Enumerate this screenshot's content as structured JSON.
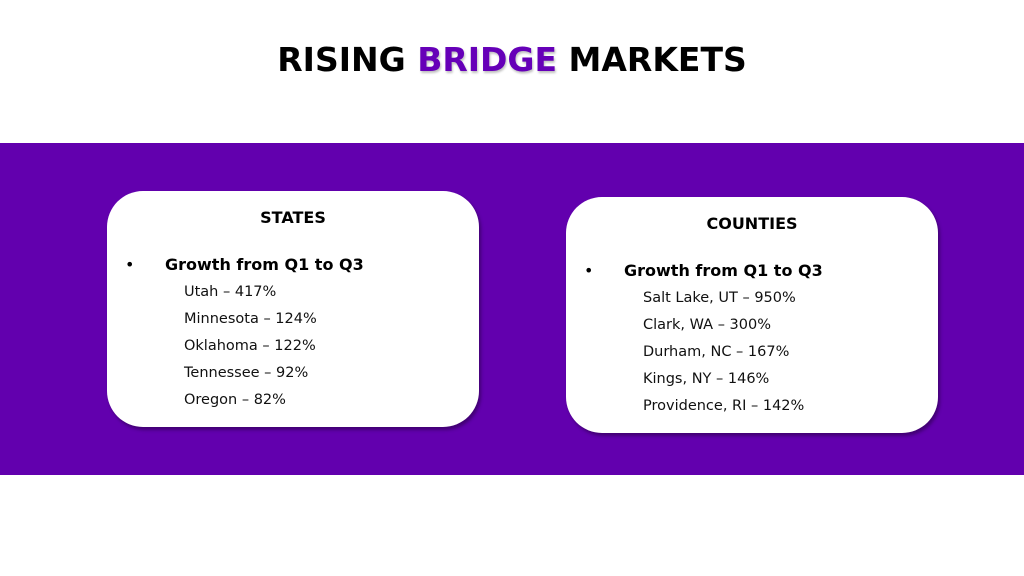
{
  "title": {
    "part1": "RISING ",
    "accent": "BRIDGE",
    "part2": " MARKETS",
    "accent_color": "#6600b8"
  },
  "colors": {
    "band": "#6200ae",
    "card": "#ffffff"
  },
  "states": {
    "heading": "STATES",
    "bullet": "•",
    "subheading": "Growth from Q1 to Q3",
    "items": [
      "Utah – 417%",
      "Minnesota – 124%",
      "Oklahoma – 122%",
      "Tennessee – 92%",
      "Oregon – 82%"
    ]
  },
  "counties": {
    "heading": "COUNTIES",
    "bullet": "•",
    "subheading": "Growth from Q1 to Q3",
    "items": [
      "Salt Lake, UT – 950%",
      "Clark, WA – 300%",
      "Durham, NC – 167%",
      "Kings, NY – 146%",
      "Providence, RI – 142%"
    ]
  }
}
